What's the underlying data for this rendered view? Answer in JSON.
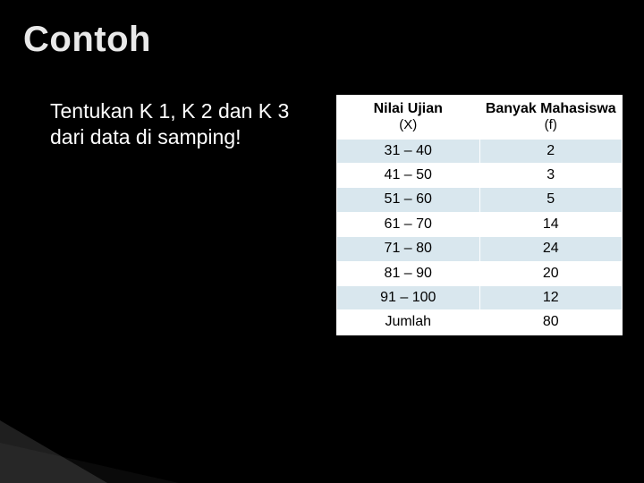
{
  "title": "Contoh",
  "prompt": "Tentukan K 1, K 2 dan K 3 dari data di samping!",
  "table": {
    "type": "table",
    "header_bg": "#ffffff",
    "header_color": "#000000",
    "row_alt_bg": "#d9e7ee",
    "row_plain_bg": "#ffffff",
    "border_color": "#ffffff",
    "columns": [
      {
        "label": "Nilai Ujian",
        "sublabel": "(X)"
      },
      {
        "label": "Banyak Mahasiswa",
        "sublabel": "(f)"
      }
    ],
    "rows": [
      {
        "x": "31 – 40",
        "f": "2",
        "alt": true
      },
      {
        "x": "41 – 50",
        "f": "3",
        "alt": false
      },
      {
        "x": "51 – 60",
        "f": "5",
        "alt": true
      },
      {
        "x": "61 – 70",
        "f": "14",
        "alt": false
      },
      {
        "x": "71 – 80",
        "f": "24",
        "alt": true
      },
      {
        "x": "81 – 90",
        "f": "20",
        "alt": false
      },
      {
        "x": "91 – 100",
        "f": "12",
        "alt": true
      },
      {
        "x": "Jumlah",
        "f": "80",
        "alt": false
      }
    ]
  },
  "colors": {
    "background": "#000000",
    "title_color": "#e9e9e9",
    "text_color": "#ffffff"
  }
}
